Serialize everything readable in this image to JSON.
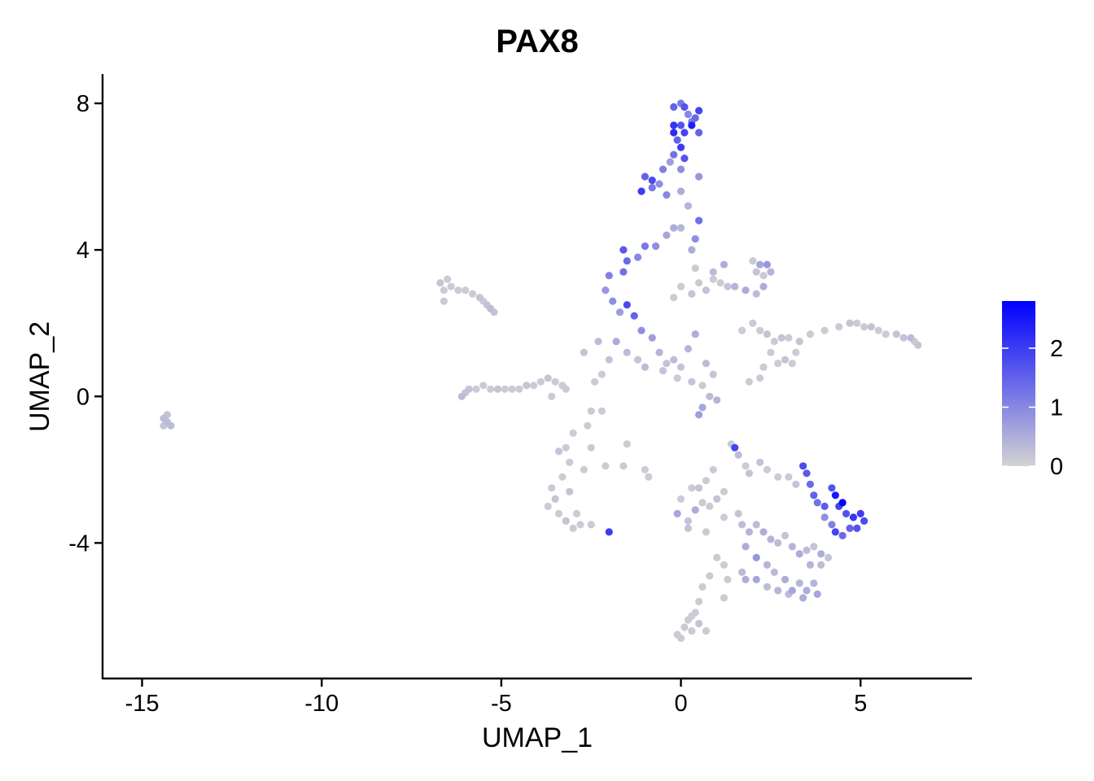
{
  "chart_data": {
    "type": "scatter",
    "title": "PAX8",
    "xlabel": "UMAP_1",
    "ylabel": "UMAP_2",
    "xlim": [
      -16.1,
      8.1
    ],
    "ylim": [
      -7.7,
      8.8
    ],
    "xticks": [
      -15,
      -10,
      -5,
      0,
      5
    ],
    "xtick_labels": [
      "-15",
      "-10",
      "-5",
      "0",
      "5"
    ],
    "yticks": [
      -4,
      0,
      4,
      8
    ],
    "ytick_labels": [
      "-4",
      "0",
      "4",
      "8"
    ],
    "grid": false,
    "legend": {
      "type": "colorbar",
      "placement": "right",
      "range": [
        0,
        2.8
      ],
      "ticks": [
        0,
        1,
        2
      ],
      "tick_labels": [
        "0",
        "1",
        "2"
      ],
      "low_color": "#d3d3d3",
      "high_color": "#0000ff"
    },
    "note": "Points are feature expression values; each cluster entry gives representative cell coordinates (UMAP_1, UMAP_2) with expression level.",
    "points": [
      [
        -14.3,
        -0.7,
        0.3
      ],
      [
        -14.4,
        -0.6,
        0.3
      ],
      [
        -14.2,
        -0.8,
        0.3
      ],
      [
        -14.3,
        -0.5,
        0.2
      ],
      [
        -14.4,
        -0.8,
        0.2
      ],
      [
        -6.7,
        3.1,
        0.2
      ],
      [
        -6.5,
        3.2,
        0.1
      ],
      [
        -6.6,
        2.9,
        0.1
      ],
      [
        -6.4,
        3.0,
        0.1
      ],
      [
        -6.6,
        2.6,
        0.1
      ],
      [
        -6.2,
        2.9,
        0.1
      ],
      [
        -6.0,
        2.9,
        0.1
      ],
      [
        -5.8,
        2.8,
        0.1
      ],
      [
        -5.6,
        2.7,
        0.2
      ],
      [
        -5.5,
        2.6,
        0.1
      ],
      [
        -5.4,
        2.5,
        0.2
      ],
      [
        -5.3,
        2.4,
        0.3
      ],
      [
        -5.2,
        2.3,
        0.2
      ],
      [
        -6.1,
        0.0,
        0.3
      ],
      [
        -6.0,
        0.1,
        0.2
      ],
      [
        -5.9,
        0.2,
        0.2
      ],
      [
        -5.7,
        0.2,
        0.1
      ],
      [
        -5.5,
        0.3,
        0.1
      ],
      [
        -5.3,
        0.2,
        0.1
      ],
      [
        -5.1,
        0.2,
        0.2
      ],
      [
        -4.9,
        0.2,
        0.1
      ],
      [
        -4.7,
        0.2,
        0.1
      ],
      [
        -4.5,
        0.2,
        0.1
      ],
      [
        -4.3,
        0.3,
        0.2
      ],
      [
        -4.1,
        0.3,
        0.1
      ],
      [
        -3.9,
        0.4,
        0.1
      ],
      [
        -3.7,
        0.5,
        0.2
      ],
      [
        -3.5,
        0.4,
        0.1
      ],
      [
        -3.3,
        0.3,
        0.1
      ],
      [
        -3.6,
        0.0,
        0.1
      ],
      [
        -3.2,
        0.2,
        0.1
      ],
      [
        -3.0,
        -1.0,
        0.1
      ],
      [
        -3.2,
        -1.4,
        0.1
      ],
      [
        -3.4,
        -1.5,
        0.2
      ],
      [
        -3.1,
        -1.8,
        0.1
      ],
      [
        -3.3,
        -2.2,
        0.1
      ],
      [
        -3.6,
        -2.5,
        0.1
      ],
      [
        -3.5,
        -2.8,
        0.2
      ],
      [
        -3.7,
        -3.0,
        0.1
      ],
      [
        -3.4,
        -3.2,
        0.1
      ],
      [
        -3.2,
        -3.4,
        0.2
      ],
      [
        -3.0,
        -3.6,
        0.1
      ],
      [
        -2.8,
        -3.5,
        0.1
      ],
      [
        -2.5,
        -3.5,
        0.1
      ],
      [
        -2.9,
        -3.2,
        0.1
      ],
      [
        -3.1,
        -2.6,
        0.2
      ],
      [
        -2.7,
        -2.0,
        0.1
      ],
      [
        -2.5,
        -1.4,
        0.1
      ],
      [
        -2.6,
        -0.8,
        0.1
      ],
      [
        -2.5,
        -0.4,
        0.1
      ],
      [
        -2.2,
        -0.4,
        0.1
      ],
      [
        -2.4,
        0.4,
        0.1
      ],
      [
        -2.2,
        0.6,
        0.1
      ],
      [
        -2.7,
        1.2,
        0.2
      ],
      [
        -2.3,
        1.5,
        0.3
      ],
      [
        -2.0,
        -3.7,
        2.0
      ],
      [
        -2.1,
        -1.9,
        0.1
      ],
      [
        -1.6,
        -1.9,
        0.1
      ],
      [
        -1.5,
        -1.3,
        0.1
      ],
      [
        -1.0,
        -2.0,
        0.1
      ],
      [
        -0.9,
        -2.2,
        0.1
      ],
      [
        -2.0,
        1.0,
        0.2
      ],
      [
        -1.8,
        1.5,
        0.5
      ],
      [
        -1.5,
        1.2,
        0.3
      ],
      [
        -1.2,
        1.0,
        0.2
      ],
      [
        -1.0,
        0.8,
        0.3
      ],
      [
        -0.8,
        1.6,
        0.7
      ],
      [
        -0.6,
        1.2,
        0.4
      ],
      [
        -0.4,
        0.9,
        0.2
      ],
      [
        -0.2,
        1.0,
        0.3
      ],
      [
        0.0,
        0.8,
        0.2
      ],
      [
        0.2,
        1.3,
        0.4
      ],
      [
        0.4,
        1.7,
        0.5
      ],
      [
        -0.5,
        0.7,
        0.2
      ],
      [
        -0.1,
        0.5,
        0.1
      ],
      [
        0.3,
        0.4,
        0.2
      ],
      [
        0.6,
        0.3,
        0.1
      ],
      [
        0.8,
        0.0,
        0.3
      ],
      [
        1.0,
        -0.1,
        0.4
      ],
      [
        0.6,
        -0.3,
        0.6
      ],
      [
        0.5,
        -0.5,
        0.7
      ],
      [
        0.9,
        0.6,
        0.2
      ],
      [
        0.7,
        0.9,
        0.3
      ],
      [
        -2.1,
        2.9,
        0.8
      ],
      [
        -1.9,
        2.6,
        0.9
      ],
      [
        -1.7,
        2.3,
        0.7
      ],
      [
        -2.0,
        3.3,
        1.1
      ],
      [
        -1.6,
        3.4,
        1.3
      ],
      [
        -1.5,
        3.7,
        1.4
      ],
      [
        -1.6,
        4.0,
        1.6
      ],
      [
        -1.2,
        3.8,
        1.0
      ],
      [
        -1.0,
        4.1,
        1.2
      ],
      [
        -0.7,
        4.1,
        0.9
      ],
      [
        -0.4,
        4.4,
        0.6
      ],
      [
        -0.2,
        4.6,
        0.5
      ],
      [
        -1.5,
        2.5,
        1.8
      ],
      [
        -1.3,
        2.2,
        1.5
      ],
      [
        -1.1,
        1.8,
        0.9
      ],
      [
        0.5,
        4.8,
        1.3
      ],
      [
        0.4,
        4.3,
        0.9
      ],
      [
        0.3,
        4.0,
        0.5
      ],
      [
        0.0,
        4.6,
        0.4
      ],
      [
        0.2,
        5.2,
        0.4
      ],
      [
        0.0,
        5.6,
        0.5
      ],
      [
        -0.4,
        5.5,
        1.0
      ],
      [
        -0.6,
        5.8,
        0.9
      ],
      [
        -0.8,
        5.7,
        1.2
      ],
      [
        -1.0,
        6.0,
        1.5
      ],
      [
        -1.1,
        5.6,
        2.0
      ],
      [
        -0.8,
        5.9,
        1.8
      ],
      [
        -0.5,
        6.2,
        1.1
      ],
      [
        -0.3,
        6.4,
        0.7
      ],
      [
        0.0,
        6.2,
        0.9
      ],
      [
        0.5,
        6.0,
        0.8
      ],
      [
        -0.2,
        6.6,
        1.3
      ],
      [
        0.0,
        6.8,
        2.0
      ],
      [
        0.1,
        6.5,
        1.7
      ],
      [
        -0.1,
        7.0,
        1.5
      ],
      [
        0.1,
        7.2,
        1.9
      ],
      [
        -0.2,
        7.2,
        2.2
      ],
      [
        0.0,
        7.4,
        1.7
      ],
      [
        0.3,
        7.5,
        1.1
      ],
      [
        0.5,
        7.2,
        1.5
      ],
      [
        0.4,
        7.6,
        1.4
      ],
      [
        0.5,
        7.8,
        1.9
      ],
      [
        0.3,
        7.4,
        2.4
      ],
      [
        -0.2,
        7.4,
        2.1
      ],
      [
        0.1,
        7.9,
        1.7
      ],
      [
        -0.2,
        7.9,
        1.5
      ],
      [
        0.0,
        8.0,
        1.2
      ],
      [
        0.2,
        7.7,
        1.0
      ],
      [
        -0.2,
        2.7,
        0.1
      ],
      [
        0.0,
        3.0,
        0.1
      ],
      [
        0.3,
        2.8,
        0.2
      ],
      [
        0.5,
        3.1,
        0.1
      ],
      [
        0.7,
        2.9,
        0.2
      ],
      [
        0.9,
        3.2,
        0.1
      ],
      [
        1.1,
        3.1,
        0.1
      ],
      [
        1.3,
        3.0,
        0.2
      ],
      [
        1.5,
        3.0,
        0.4
      ],
      [
        1.8,
        2.9,
        0.5
      ],
      [
        2.1,
        2.8,
        0.3
      ],
      [
        2.3,
        3.0,
        0.5
      ],
      [
        0.4,
        3.5,
        0.1
      ],
      [
        0.9,
        3.4,
        0.3
      ],
      [
        1.2,
        3.6,
        0.5
      ],
      [
        2.0,
        3.7,
        0.1
      ],
      [
        2.2,
        3.6,
        0.6
      ],
      [
        2.4,
        3.6,
        0.8
      ],
      [
        2.5,
        3.4,
        0.4
      ],
      [
        2.3,
        3.3,
        0.1
      ],
      [
        2.1,
        3.4,
        0.2
      ],
      [
        1.7,
        1.8,
        0.1
      ],
      [
        2.0,
        2.0,
        0.1
      ],
      [
        2.2,
        1.8,
        0.1
      ],
      [
        2.4,
        1.7,
        0.2
      ],
      [
        2.6,
        1.5,
        0.1
      ],
      [
        2.8,
        1.6,
        0.2
      ],
      [
        2.5,
        1.2,
        0.1
      ],
      [
        2.7,
        0.9,
        0.1
      ],
      [
        2.9,
        1.0,
        0.2
      ],
      [
        3.1,
        0.9,
        0.1
      ],
      [
        3.2,
        1.2,
        0.1
      ],
      [
        3.3,
        1.5,
        0.2
      ],
      [
        2.2,
        0.5,
        0.1
      ],
      [
        1.9,
        0.4,
        0.1
      ],
      [
        2.3,
        0.8,
        0.1
      ],
      [
        3.0,
        1.6,
        0.1
      ],
      [
        3.6,
        1.7,
        0.1
      ],
      [
        4.0,
        1.8,
        0.1
      ],
      [
        4.4,
        1.9,
        0.1
      ],
      [
        4.7,
        2.0,
        0.2
      ],
      [
        4.9,
        2.0,
        0.1
      ],
      [
        5.1,
        1.9,
        0.1
      ],
      [
        5.3,
        1.9,
        0.2
      ],
      [
        5.5,
        1.8,
        0.1
      ],
      [
        5.7,
        1.7,
        0.1
      ],
      [
        6.0,
        1.7,
        0.2
      ],
      [
        6.2,
        1.6,
        0.2
      ],
      [
        6.4,
        1.6,
        0.3
      ],
      [
        6.6,
        1.4,
        0.2
      ],
      [
        6.5,
        1.5,
        0.1
      ],
      [
        1.4,
        -1.3,
        0.1
      ],
      [
        1.5,
        -1.4,
        1.9
      ],
      [
        1.6,
        -1.6,
        0.3
      ],
      [
        1.8,
        -1.9,
        0.1
      ],
      [
        1.9,
        -2.1,
        0.2
      ],
      [
        2.2,
        -1.8,
        0.2
      ],
      [
        2.4,
        -2.0,
        0.1
      ],
      [
        2.7,
        -2.2,
        0.1
      ],
      [
        3.0,
        -2.2,
        0.1
      ],
      [
        3.2,
        -2.4,
        0.2
      ],
      [
        3.4,
        -1.9,
        1.8
      ],
      [
        3.5,
        -2.1,
        1.6
      ],
      [
        3.6,
        -2.4,
        1.4
      ],
      [
        3.7,
        -2.7,
        1.5
      ],
      [
        3.8,
        -2.9,
        1.3
      ],
      [
        4.0,
        -3.0,
        1.6
      ],
      [
        4.2,
        -2.5,
        1.7
      ],
      [
        4.3,
        -2.7,
        2.5
      ],
      [
        4.5,
        -2.9,
        2.8
      ],
      [
        4.4,
        -3.0,
        1.9
      ],
      [
        4.6,
        -3.2,
        1.7
      ],
      [
        4.8,
        -3.3,
        2.1
      ],
      [
        5.0,
        -3.2,
        2.0
      ],
      [
        5.1,
        -3.4,
        1.8
      ],
      [
        4.9,
        -3.6,
        1.7
      ],
      [
        4.7,
        -3.6,
        1.5
      ],
      [
        4.5,
        -3.8,
        1.4
      ],
      [
        4.3,
        -3.7,
        1.9
      ],
      [
        4.2,
        -3.5,
        1.1
      ],
      [
        4.0,
        -3.3,
        0.9
      ],
      [
        0.0,
        -2.8,
        0.1
      ],
      [
        -0.1,
        -3.2,
        0.6
      ],
      [
        0.2,
        -3.4,
        0.2
      ],
      [
        0.4,
        -3.1,
        0.5
      ],
      [
        0.6,
        -2.9,
        0.1
      ],
      [
        0.8,
        -3.0,
        0.1
      ],
      [
        1.0,
        -2.8,
        0.2
      ],
      [
        0.3,
        -2.5,
        0.1
      ],
      [
        0.5,
        -2.5,
        0.2
      ],
      [
        0.7,
        -2.3,
        0.1
      ],
      [
        1.2,
        -2.6,
        0.1
      ],
      [
        0.9,
        -2.0,
        0.1
      ],
      [
        0.2,
        -3.6,
        0.2
      ],
      [
        0.7,
        -3.7,
        0.1
      ],
      [
        1.2,
        -3.3,
        0.1
      ],
      [
        1.6,
        -3.2,
        0.2
      ],
      [
        1.7,
        -3.5,
        0.3
      ],
      [
        1.9,
        -3.7,
        0.4
      ],
      [
        2.1,
        -3.5,
        0.3
      ],
      [
        2.3,
        -3.7,
        0.5
      ],
      [
        2.5,
        -3.9,
        0.4
      ],
      [
        2.7,
        -4.0,
        0.3
      ],
      [
        2.9,
        -3.8,
        0.2
      ],
      [
        3.1,
        -4.1,
        0.4
      ],
      [
        3.3,
        -4.3,
        0.5
      ],
      [
        3.5,
        -4.2,
        0.3
      ],
      [
        3.7,
        -4.1,
        0.2
      ],
      [
        3.9,
        -4.3,
        0.5
      ],
      [
        1.8,
        -4.1,
        0.5
      ],
      [
        2.1,
        -4.4,
        0.8
      ],
      [
        2.4,
        -4.6,
        0.4
      ],
      [
        2.6,
        -4.8,
        0.3
      ],
      [
        2.9,
        -5.0,
        0.5
      ],
      [
        3.1,
        -5.3,
        0.6
      ],
      [
        3.3,
        -5.1,
        0.4
      ],
      [
        3.5,
        -5.3,
        0.5
      ],
      [
        3.7,
        -5.1,
        0.4
      ],
      [
        3.8,
        -5.4,
        0.6
      ],
      [
        3.4,
        -5.5,
        0.5
      ],
      [
        3.0,
        -5.4,
        0.3
      ],
      [
        2.7,
        -5.3,
        0.4
      ],
      [
        2.4,
        -5.2,
        0.3
      ],
      [
        2.1,
        -5.0,
        0.6
      ],
      [
        1.8,
        -5.0,
        0.5
      ],
      [
        1.7,
        -4.8,
        0.3
      ],
      [
        3.6,
        -4.6,
        0.4
      ],
      [
        3.9,
        -4.6,
        0.3
      ],
      [
        4.1,
        -4.4,
        0.2
      ],
      [
        1.2,
        -4.6,
        0.1
      ],
      [
        1.0,
        -4.4,
        0.1
      ],
      [
        0.8,
        -4.9,
        0.1
      ],
      [
        0.6,
        -5.2,
        0.1
      ],
      [
        0.5,
        -5.6,
        0.1
      ],
      [
        0.4,
        -5.9,
        0.1
      ],
      [
        0.2,
        -6.1,
        0.1
      ],
      [
        0.3,
        -6.4,
        0.1
      ],
      [
        0.1,
        -6.3,
        0.1
      ],
      [
        -0.1,
        -6.5,
        0.1
      ],
      [
        0.0,
        -6.6,
        0.1
      ],
      [
        0.3,
        -6.0,
        0.1
      ],
      [
        0.5,
        -6.2,
        0.2
      ],
      [
        0.7,
        -6.4,
        0.1
      ],
      [
        1.2,
        -5.5,
        0.1
      ],
      [
        1.3,
        -5.0,
        0.1
      ]
    ]
  }
}
